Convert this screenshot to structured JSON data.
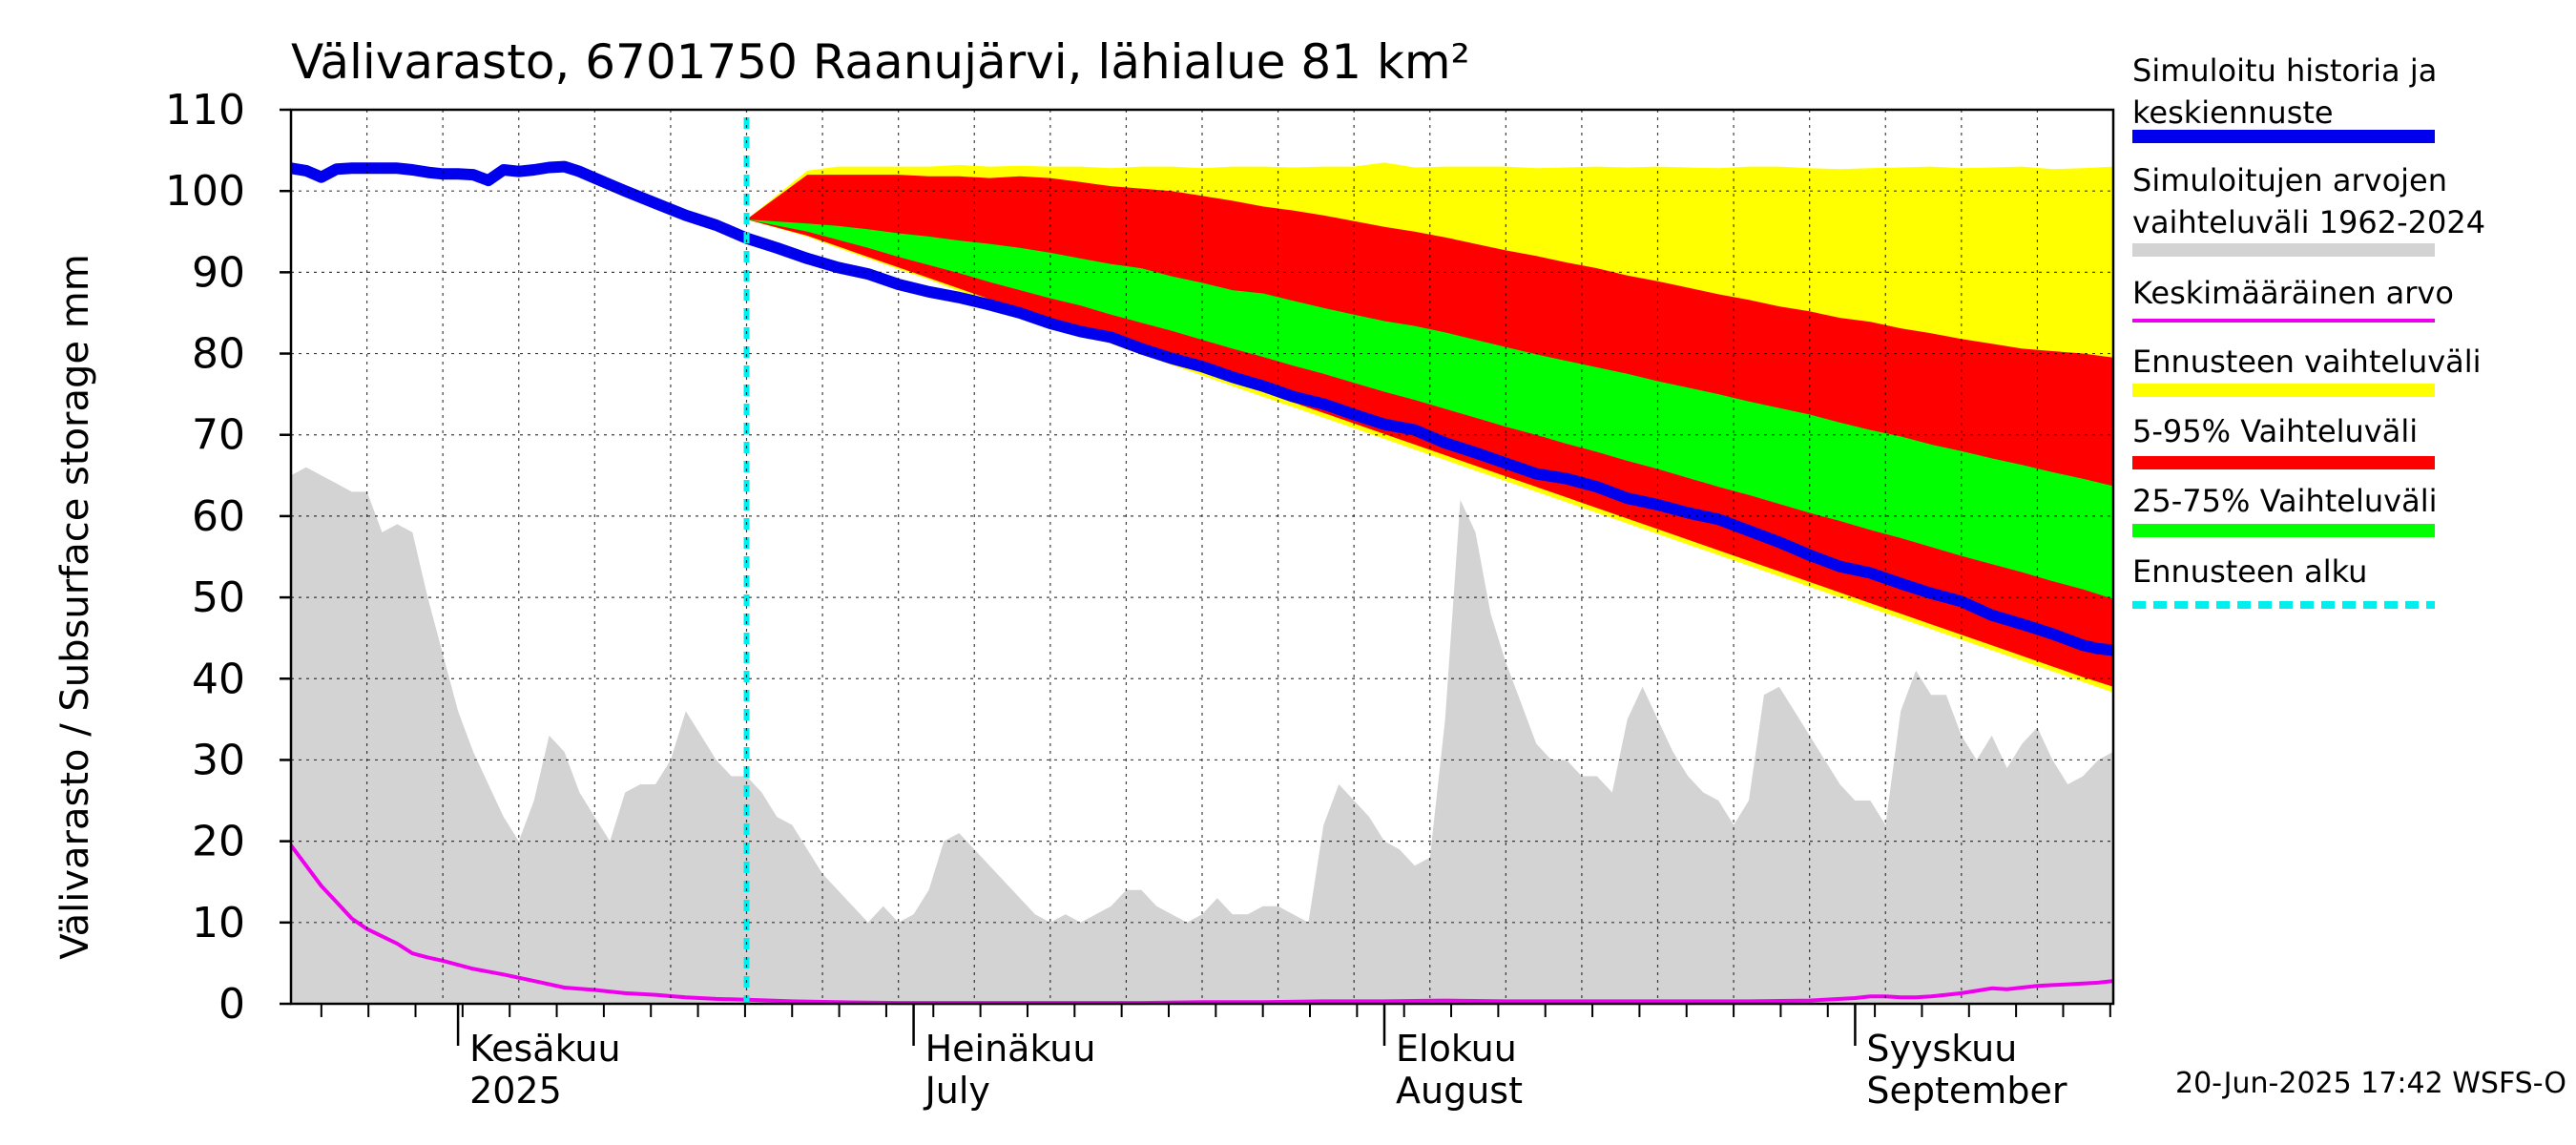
{
  "chart_data": {
    "type": "area",
    "title": "Välivarasto, 6701750 Raanujärvi, lähialue 81 km²",
    "ylabel": "Välivarasto / Subsurface storage  mm",
    "ylim": [
      0,
      110
    ],
    "yticks": [
      0,
      10,
      20,
      30,
      40,
      50,
      60,
      70,
      80,
      90,
      100,
      110
    ],
    "grid": true,
    "x_range_days": [
      0,
      120
    ],
    "month_labels": [
      {
        "line1": "Kesäkuu",
        "line2": "2025",
        "day": 11
      },
      {
        "line1": "Heinäkuu",
        "line2": "July",
        "day": 41
      },
      {
        "line1": "Elokuu",
        "line2": "August",
        "day": 72
      },
      {
        "line1": "Syyskuu",
        "line2": "September",
        "day": 103
      }
    ],
    "forecast_start_day": 30,
    "legend_position": "right",
    "legend": [
      {
        "label1": "Simuloitu historia ja",
        "label2": "keskiennuste",
        "color": "#0000ee",
        "kind": "thick-line"
      },
      {
        "label1": "Simuloitujen arvojen",
        "label2": "vaihteluväli 1962-2024",
        "color": "#d3d3d3",
        "kind": "band"
      },
      {
        "label1": "Keskimääräinen arvo",
        "label2": "",
        "color": "#ee00ee",
        "kind": "line"
      },
      {
        "label1": "Ennusteen vaihteluväli",
        "label2": "",
        "color": "#ffff00",
        "kind": "band"
      },
      {
        "label1": "5-95% Vaihteluväli",
        "label2": "",
        "color": "#ff0000",
        "kind": "band"
      },
      {
        "label1": "25-75% Vaihteluväli",
        "label2": "",
        "color": "#00ff00",
        "kind": "band"
      },
      {
        "label1": "Ennusteen alku",
        "label2": "",
        "color": "#00eeee",
        "kind": "dashed-line"
      }
    ],
    "series": {
      "history_range_max": {
        "days": [
          0,
          1,
          2,
          3,
          4,
          5,
          6,
          7,
          8,
          9,
          10,
          11,
          12,
          13,
          14,
          15,
          16,
          17,
          18,
          19,
          20,
          21,
          22,
          23,
          24,
          25,
          26,
          27,
          28,
          29,
          30,
          31,
          32,
          33,
          34,
          35,
          36,
          37,
          38,
          39,
          40,
          41,
          42,
          43,
          44,
          45,
          46,
          47,
          48,
          49,
          50,
          51,
          52,
          53,
          54,
          55,
          56,
          57,
          58,
          59,
          60,
          61,
          62,
          63,
          64,
          65,
          66,
          67,
          68,
          69,
          70,
          71,
          72,
          73,
          74,
          75,
          76,
          77,
          78,
          79,
          80,
          81,
          82,
          83,
          84,
          85,
          86,
          87,
          88,
          89,
          90,
          91,
          92,
          93,
          94,
          95,
          96,
          97,
          98,
          99,
          100,
          101,
          102,
          103,
          104,
          105,
          106,
          107,
          108,
          109,
          110,
          111,
          112,
          113,
          114,
          115,
          116,
          117,
          118,
          119,
          120
        ],
        "values": [
          65,
          66,
          65,
          64,
          63,
          63,
          58,
          59,
          58,
          50,
          43,
          36,
          31,
          27,
          23,
          20,
          25,
          33,
          31,
          26,
          23,
          20,
          26,
          27,
          27,
          30,
          36,
          33,
          30,
          28,
          28,
          26,
          23,
          22,
          19,
          16,
          14,
          12,
          10,
          12,
          10,
          11,
          14,
          20,
          21,
          19,
          17,
          15,
          13,
          11,
          10,
          11,
          10,
          11,
          12,
          14,
          14,
          12,
          11,
          10,
          11,
          13,
          11,
          11,
          12,
          12,
          11,
          10,
          22,
          27,
          25,
          23,
          20,
          19,
          17,
          18,
          35,
          62,
          58,
          48,
          42,
          37,
          32,
          30,
          30,
          28,
          28,
          26,
          35,
          39,
          35,
          31,
          28,
          26,
          25,
          22,
          25,
          38,
          39,
          36,
          33,
          30,
          27,
          25,
          25,
          22,
          36,
          41,
          38,
          38,
          33,
          30,
          33,
          29,
          32,
          34,
          30,
          27,
          28,
          30,
          31
        ]
      },
      "history_range_min": {
        "value": 0
      },
      "mean_value": {
        "days": [
          0,
          1,
          2,
          3,
          4,
          5,
          6,
          7,
          8,
          9,
          10,
          12,
          14,
          16,
          18,
          20,
          22,
          24,
          26,
          28,
          30,
          33,
          36,
          40,
          44,
          48,
          52,
          56,
          60,
          64,
          68,
          72,
          76,
          80,
          84,
          88,
          92,
          96,
          100,
          102,
          103,
          104,
          105,
          106,
          107,
          108,
          109,
          110,
          111,
          112,
          113,
          114,
          115,
          116,
          117,
          118,
          119,
          120
        ],
        "values": [
          19.5,
          17,
          14.5,
          12.5,
          10.5,
          9.2,
          8.3,
          7.4,
          6.2,
          5.7,
          5.3,
          4.3,
          3.6,
          2.8,
          2,
          1.7,
          1.3,
          1.1,
          0.8,
          0.6,
          0.5,
          0.3,
          0.2,
          0.1,
          0.1,
          0.1,
          0.1,
          0.1,
          0.2,
          0.2,
          0.3,
          0.3,
          0.4,
          0.3,
          0.3,
          0.3,
          0.3,
          0.3,
          0.4,
          0.6,
          0.7,
          0.9,
          0.9,
          0.8,
          0.8,
          0.9,
          1.1,
          1.3,
          1.6,
          1.9,
          1.8,
          2,
          2.2,
          2.3,
          2.4,
          2.5,
          2.6,
          2.8
        ]
      },
      "simulated_median": {
        "days": [
          0,
          1,
          2,
          3,
          4,
          5,
          6,
          7,
          8,
          9,
          10,
          11,
          12,
          13,
          14,
          15,
          16,
          17,
          18,
          19,
          20,
          22,
          24,
          26,
          28,
          30,
          32,
          34,
          36,
          38,
          40,
          42,
          44,
          46,
          48,
          50,
          52,
          54,
          56,
          58,
          60,
          62,
          64,
          66,
          68,
          70,
          72,
          74,
          76,
          78,
          80,
          82,
          84,
          86,
          88,
          90,
          92,
          94,
          96,
          98,
          100,
          102,
          104,
          106,
          108,
          110,
          112,
          114,
          116,
          118,
          119,
          120
        ],
        "values": [
          102.8,
          102.5,
          101.7,
          102.7,
          102.8,
          102.8,
          102.8,
          102.8,
          102.6,
          102.3,
          102.1,
          102.1,
          102,
          101.3,
          102.6,
          102.4,
          102.6,
          102.9,
          103,
          102.4,
          101.6,
          100,
          98.5,
          97,
          95.8,
          94.2,
          93,
          91.7,
          90.6,
          89.8,
          88.5,
          87.6,
          86.9,
          86,
          85,
          83.7,
          82.7,
          82,
          80.6,
          79.4,
          78.4,
          77.1,
          76,
          74.7,
          73.8,
          72.5,
          71.3,
          70.6,
          69,
          67.8,
          66.5,
          65.2,
          64.6,
          63.6,
          62.2,
          61.4,
          60.4,
          59.6,
          58.2,
          56.8,
          55.2,
          53.8,
          53,
          51.7,
          50.5,
          49.5,
          47.8,
          46.7,
          45.5,
          44.1,
          43.7,
          43.5
        ]
      },
      "forecast_days": [
        30,
        34,
        36,
        38,
        40,
        42,
        44,
        46,
        48,
        50,
        52,
        54,
        56,
        58,
        60,
        62,
        64,
        66,
        68,
        70,
        72,
        74,
        76,
        78,
        80,
        82,
        84,
        86,
        88,
        90,
        92,
        94,
        96,
        98,
        100,
        102,
        104,
        106,
        108,
        110,
        112,
        114,
        116,
        118,
        120
      ],
      "forecast_min": [
        96.5,
        94.4,
        93,
        91.7,
        90.4,
        89.1,
        87.7,
        86.4,
        85.1,
        83.8,
        82.5,
        81.2,
        79.9,
        78.6,
        77.3,
        76,
        74.7,
        73.4,
        72.1,
        70.8,
        69.5,
        68.2,
        66.9,
        65.6,
        64.3,
        63,
        61.7,
        60.4,
        59.1,
        57.8,
        56.5,
        55.2,
        53.9,
        52.6,
        51.3,
        50,
        48.7,
        47.4,
        46.1,
        44.8,
        43.5,
        42.2,
        40.9,
        39.6,
        38.3
      ],
      "forecast_p05": [
        96.5,
        94.5,
        93.2,
        91.9,
        90.6,
        89.3,
        88,
        86.7,
        85.4,
        84.1,
        82.8,
        81.5,
        80.3,
        79.1,
        77.9,
        76.6,
        75.3,
        74,
        72.7,
        71.4,
        70.1,
        68.8,
        67.5,
        66.2,
        64.9,
        63.6,
        62.3,
        61,
        59.7,
        58.4,
        57.1,
        55.8,
        54.5,
        53.2,
        51.9,
        50.6,
        49.3,
        48,
        46.7,
        45.4,
        44.1,
        42.8,
        41.5,
        40.2,
        39
      ],
      "forecast_p25": [
        96.5,
        95,
        94,
        93,
        91.9,
        90.9,
        89.9,
        88.8,
        87.8,
        86.8,
        85.9,
        84.8,
        83.8,
        82.8,
        81.7,
        80.6,
        79.6,
        78.5,
        77.5,
        76.4,
        75.3,
        74.3,
        73.2,
        72.1,
        71,
        70,
        68.9,
        67.9,
        66.8,
        65.8,
        64.7,
        63.6,
        62.6,
        61.5,
        60.4,
        59.4,
        58.3,
        57.3,
        56.2,
        55.1,
        54.1,
        53.1,
        52,
        51,
        49.8
      ],
      "forecast_p75": [
        96.5,
        96,
        95.7,
        95.3,
        94.8,
        94.4,
        93.9,
        93.5,
        93,
        92.4,
        91.7,
        91,
        90.5,
        89.5,
        88.7,
        87.8,
        87.4,
        86.5,
        85.6,
        84.8,
        84,
        83.4,
        82.6,
        81.7,
        80.8,
        79.9,
        79.1,
        78.3,
        77.5,
        76.6,
        75.8,
        75,
        74.1,
        73.3,
        72.5,
        71.5,
        70.6,
        69.8,
        68.8,
        68,
        67.1,
        66.3,
        65.4,
        64.6,
        63.7
      ],
      "forecast_p95": [
        96.5,
        102,
        102,
        102,
        102,
        101.8,
        101.8,
        101.6,
        101.8,
        101.6,
        101.1,
        100.6,
        100.3,
        100,
        99.4,
        98.8,
        98.1,
        97.6,
        97,
        96.3,
        95.6,
        95,
        94.3,
        93.5,
        92.7,
        92,
        91.2,
        90.5,
        89.6,
        88.9,
        88.1,
        87.3,
        86.6,
        85.8,
        85.2,
        84.4,
        83.9,
        83.1,
        82.5,
        81.8,
        81.2,
        80.6,
        80.3,
        80,
        79.5
      ],
      "forecast_max": [
        96.5,
        102.5,
        103,
        103,
        103,
        103,
        103.2,
        103,
        103.1,
        103,
        103,
        102.8,
        103,
        103,
        102.8,
        103,
        103,
        102.9,
        103,
        103,
        103.5,
        102.9,
        103,
        103,
        103,
        102.8,
        102.9,
        103,
        102.9,
        103,
        102.9,
        102.8,
        103,
        103,
        102.8,
        102.7,
        102.8,
        102.9,
        103,
        102.8,
        102.9,
        103,
        102.7,
        102.8,
        103
      ]
    }
  },
  "footer": {
    "timestamp": "20-Jun-2025 17:42 WSFS-O"
  }
}
